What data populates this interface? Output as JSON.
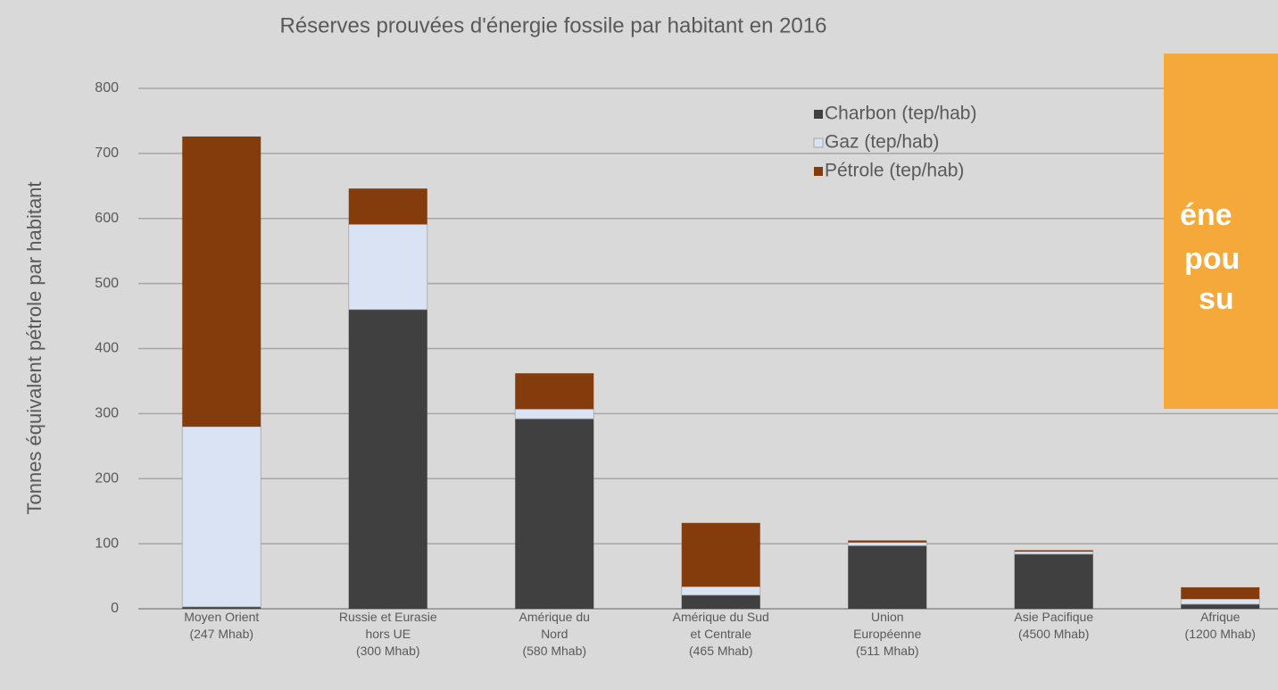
{
  "chart_data": {
    "type": "stacked_bar",
    "title": "Réserves prouvées d'énergie fossile par habitant en 2016",
    "y_label": "Tonnes équivalent pétrole par habitant",
    "categories": [
      "Moyen Orient\n(247 Mhab)",
      "Russie et Eurasie\nhors UE\n(300 Mhab)",
      "Amérique du\nNord\n(580 Mhab)",
      "Amérique du Sud\net Centrale\n(465 Mhab)",
      "Union\nEuropéenne\n(511 Mhab)",
      "Asie Pacifique\n(4500 Mhab)",
      "Afrique\n(1200 Mhab)"
    ],
    "series": [
      {
        "name": "Charbon (tep/hab)",
        "color": "#404040",
        "values": [
          3,
          460,
          292,
          21,
          97,
          84,
          7
        ]
      },
      {
        "name": "Gaz (tep/hab)",
        "color": "#dae3f3",
        "values": [
          277,
          131,
          15,
          13,
          5,
          4,
          8
        ]
      },
      {
        "name": "Pétrole (tep/hab)",
        "color": "#843c0c",
        "values": [
          446,
          55,
          55,
          98,
          3,
          2,
          18
        ]
      }
    ],
    "ylim": [
      0,
      800
    ],
    "yticks": [
      0,
      100,
      200,
      300,
      400,
      500,
      600,
      700,
      800
    ],
    "grid": true,
    "legend": "top-right"
  },
  "overlay": {
    "lines": [
      "éne",
      "pou",
      "su"
    ]
  }
}
